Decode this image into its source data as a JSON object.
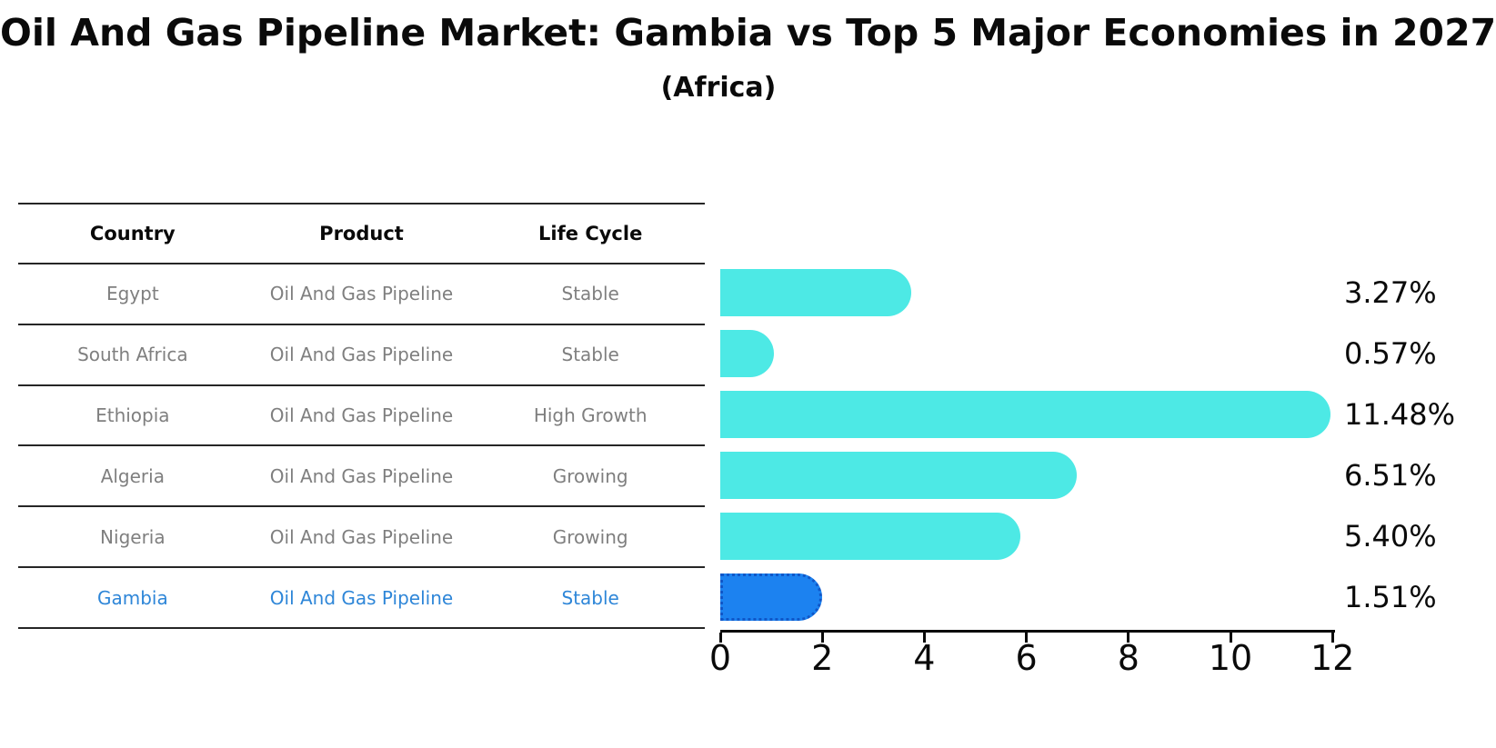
{
  "title": "Oil And Gas Pipeline Market: Gambia vs Top 5 Major Economies in 2027",
  "subtitle": "(Africa)",
  "table": {
    "headers": [
      "Country",
      "Product",
      "Life Cycle"
    ],
    "rows": [
      {
        "country": "Egypt",
        "product": "Oil And Gas Pipeline",
        "life_cycle": "Stable",
        "highlighted": false
      },
      {
        "country": "South Africa",
        "product": "Oil And Gas Pipeline",
        "life_cycle": "Stable",
        "highlighted": false
      },
      {
        "country": "Ethiopia",
        "product": "Oil And Gas Pipeline",
        "life_cycle": "High Growth",
        "highlighted": false
      },
      {
        "country": "Algeria",
        "product": "Oil And Gas Pipeline",
        "life_cycle": "Growing",
        "highlighted": false
      },
      {
        "country": "Nigeria",
        "product": "Oil And Gas Pipeline",
        "life_cycle": "Growing",
        "highlighted": false
      },
      {
        "country": "Gambia",
        "product": "Oil And Gas Pipeline",
        "life_cycle": "Stable",
        "highlighted": true
      }
    ]
  },
  "chart_data": {
    "type": "bar",
    "orientation": "horizontal",
    "title": "Oil And Gas Pipeline Market: Gambia vs Top 5 Major Economies in 2027 (Africa)",
    "categories": [
      "Egypt",
      "South Africa",
      "Ethiopia",
      "Algeria",
      "Nigeria",
      "Gambia"
    ],
    "values": [
      3.27,
      0.57,
      11.48,
      6.51,
      5.4,
      1.51
    ],
    "value_labels": [
      "3.27%",
      "0.57%",
      "11.48%",
      "6.51%",
      "5.40%",
      "1.51%"
    ],
    "highlight_index": 5,
    "xlim": [
      0,
      12
    ],
    "x_ticks": [
      0,
      2,
      4,
      6,
      8,
      10,
      12
    ],
    "grid": false,
    "legend": false,
    "colors": {
      "bar": "#4DE9E5",
      "highlight_bar": "#1C82F0",
      "highlight_bar_border": "#1057C8",
      "highlight_text": "#2E86D8",
      "row_text": "#7f7f7f",
      "axis": "#0a0a0a"
    }
  }
}
